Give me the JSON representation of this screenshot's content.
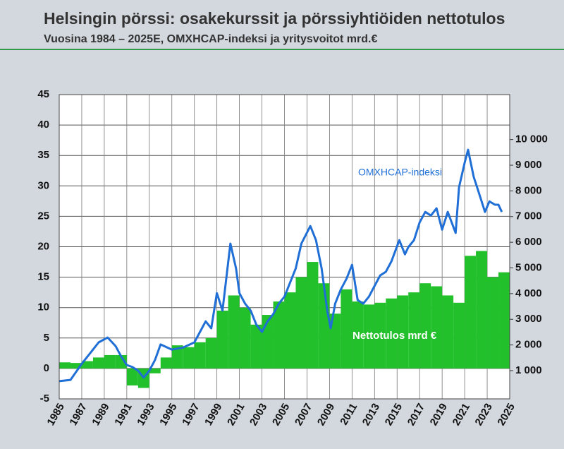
{
  "chart_data": {
    "type": "combo",
    "title": "Helsingin pörssi: osakekurssit ja pörssiyhtiöiden nettotulos",
    "subtitle": "Vuosina 1984 – 2025E, OMXHCAP-indeksi ja yritysvoitot mrd.€",
    "xlim": [
      1985,
      2025
    ],
    "xticks": [
      1985,
      1987,
      1989,
      1991,
      1993,
      1995,
      1997,
      1999,
      2001,
      2003,
      2005,
      2007,
      2009,
      2011,
      2013,
      2015,
      2017,
      2019,
      2021,
      2023,
      2025
    ],
    "ylim": [
      -5,
      45
    ],
    "yticks": [
      -5,
      0,
      5,
      10,
      15,
      20,
      25,
      30,
      35,
      40,
      45
    ],
    "y2lim": [
      -100,
      11750
    ],
    "y2ticks": [
      {
        "value": 1000,
        "label": "1 000"
      },
      {
        "value": 2000,
        "label": "2 000"
      },
      {
        "value": 3000,
        "label": "3 000"
      },
      {
        "value": 4000,
        "label": "4 000"
      },
      {
        "value": 5000,
        "label": "5 000"
      },
      {
        "value": 6000,
        "label": "6 000"
      },
      {
        "value": 7000,
        "label": "7 000"
      },
      {
        "value": 8000,
        "label": "8 000"
      },
      {
        "value": 9000,
        "label": "9 000"
      },
      {
        "value": 10000,
        "label": "10 000"
      }
    ],
    "grid": true,
    "series": [
      {
        "name": "Nettotulos mrd €",
        "type": "bar",
        "color": "#22c02a",
        "x": [
          1985,
          1986,
          1987,
          1988,
          1989,
          1990,
          1991,
          1992,
          1993,
          1994,
          1995,
          1996,
          1997,
          1998,
          1999,
          2000,
          2001,
          2002,
          2003,
          2004,
          2005,
          2006,
          2007,
          2008,
          2009,
          2010,
          2011,
          2012,
          2013,
          2014,
          2015,
          2016,
          2017,
          2018,
          2019,
          2020,
          2021,
          2022,
          2023,
          2024
        ],
        "values": [
          1.0,
          0.9,
          1.2,
          1.8,
          2.2,
          2.2,
          -2.8,
          -3.2,
          -0.8,
          1.8,
          3.8,
          3.5,
          4.3,
          5.0,
          9.5,
          12.0,
          10.0,
          7.2,
          8.8,
          11.0,
          12.5,
          15.0,
          17.5,
          14.0,
          9.0,
          13.0,
          11.0,
          10.5,
          10.8,
          11.5,
          12.0,
          12.5,
          14.0,
          13.5,
          12.0,
          10.8,
          18.5,
          19.3,
          15.0,
          15.8
        ]
      },
      {
        "name": "OMXHCAP-indeksi",
        "type": "line",
        "axis": "y2",
        "color": "#1f6fd6",
        "x": [
          1985,
          1986,
          1987,
          1988,
          1988.5,
          1989.3,
          1990,
          1990.5,
          1991,
          1991.5,
          1992,
          1992.5,
          1993,
          1993.5,
          1994,
          1995,
          1996,
          1997,
          1998,
          1998.5,
          1999,
          1999.5,
          2000.2,
          2000.7,
          2001,
          2001.5,
          2002,
          2002.5,
          2003,
          2003.5,
          2004,
          2004.5,
          2005,
          2005.5,
          2006,
          2006.5,
          2007.3,
          2007.8,
          2008.3,
          2008.8,
          2009.1,
          2009.5,
          2010,
          2010.5,
          2011,
          2011.5,
          2012,
          2012.5,
          2013,
          2013.5,
          2014,
          2014.5,
          2015.2,
          2015.7,
          2016,
          2016.5,
          2017,
          2017.5,
          2018,
          2018.5,
          2019,
          2019.5,
          2020.2,
          2020.5,
          2021,
          2021.3,
          2021.8,
          2022.3,
          2022.8,
          2023.2,
          2023.7,
          2024,
          2024.3
        ],
        "values": [
          590,
          640,
          1270,
          1820,
          2100,
          2290,
          1960,
          1550,
          1220,
          1140,
          1000,
          730,
          1000,
          1410,
          2020,
          1820,
          1900,
          2100,
          2920,
          2650,
          4020,
          3340,
          5950,
          4980,
          4020,
          3610,
          3340,
          2790,
          2510,
          2920,
          3200,
          3610,
          3880,
          4430,
          4980,
          5950,
          6630,
          6080,
          4980,
          3340,
          2650,
          3610,
          4160,
          4570,
          5120,
          3750,
          3610,
          3880,
          4300,
          4710,
          4850,
          5260,
          6080,
          5530,
          5810,
          6080,
          6770,
          7180,
          7040,
          7320,
          6490,
          7180,
          6360,
          8140,
          9100,
          9600,
          8550,
          7870,
          7180,
          7590,
          7460,
          7460,
          7180
        ]
      }
    ]
  }
}
